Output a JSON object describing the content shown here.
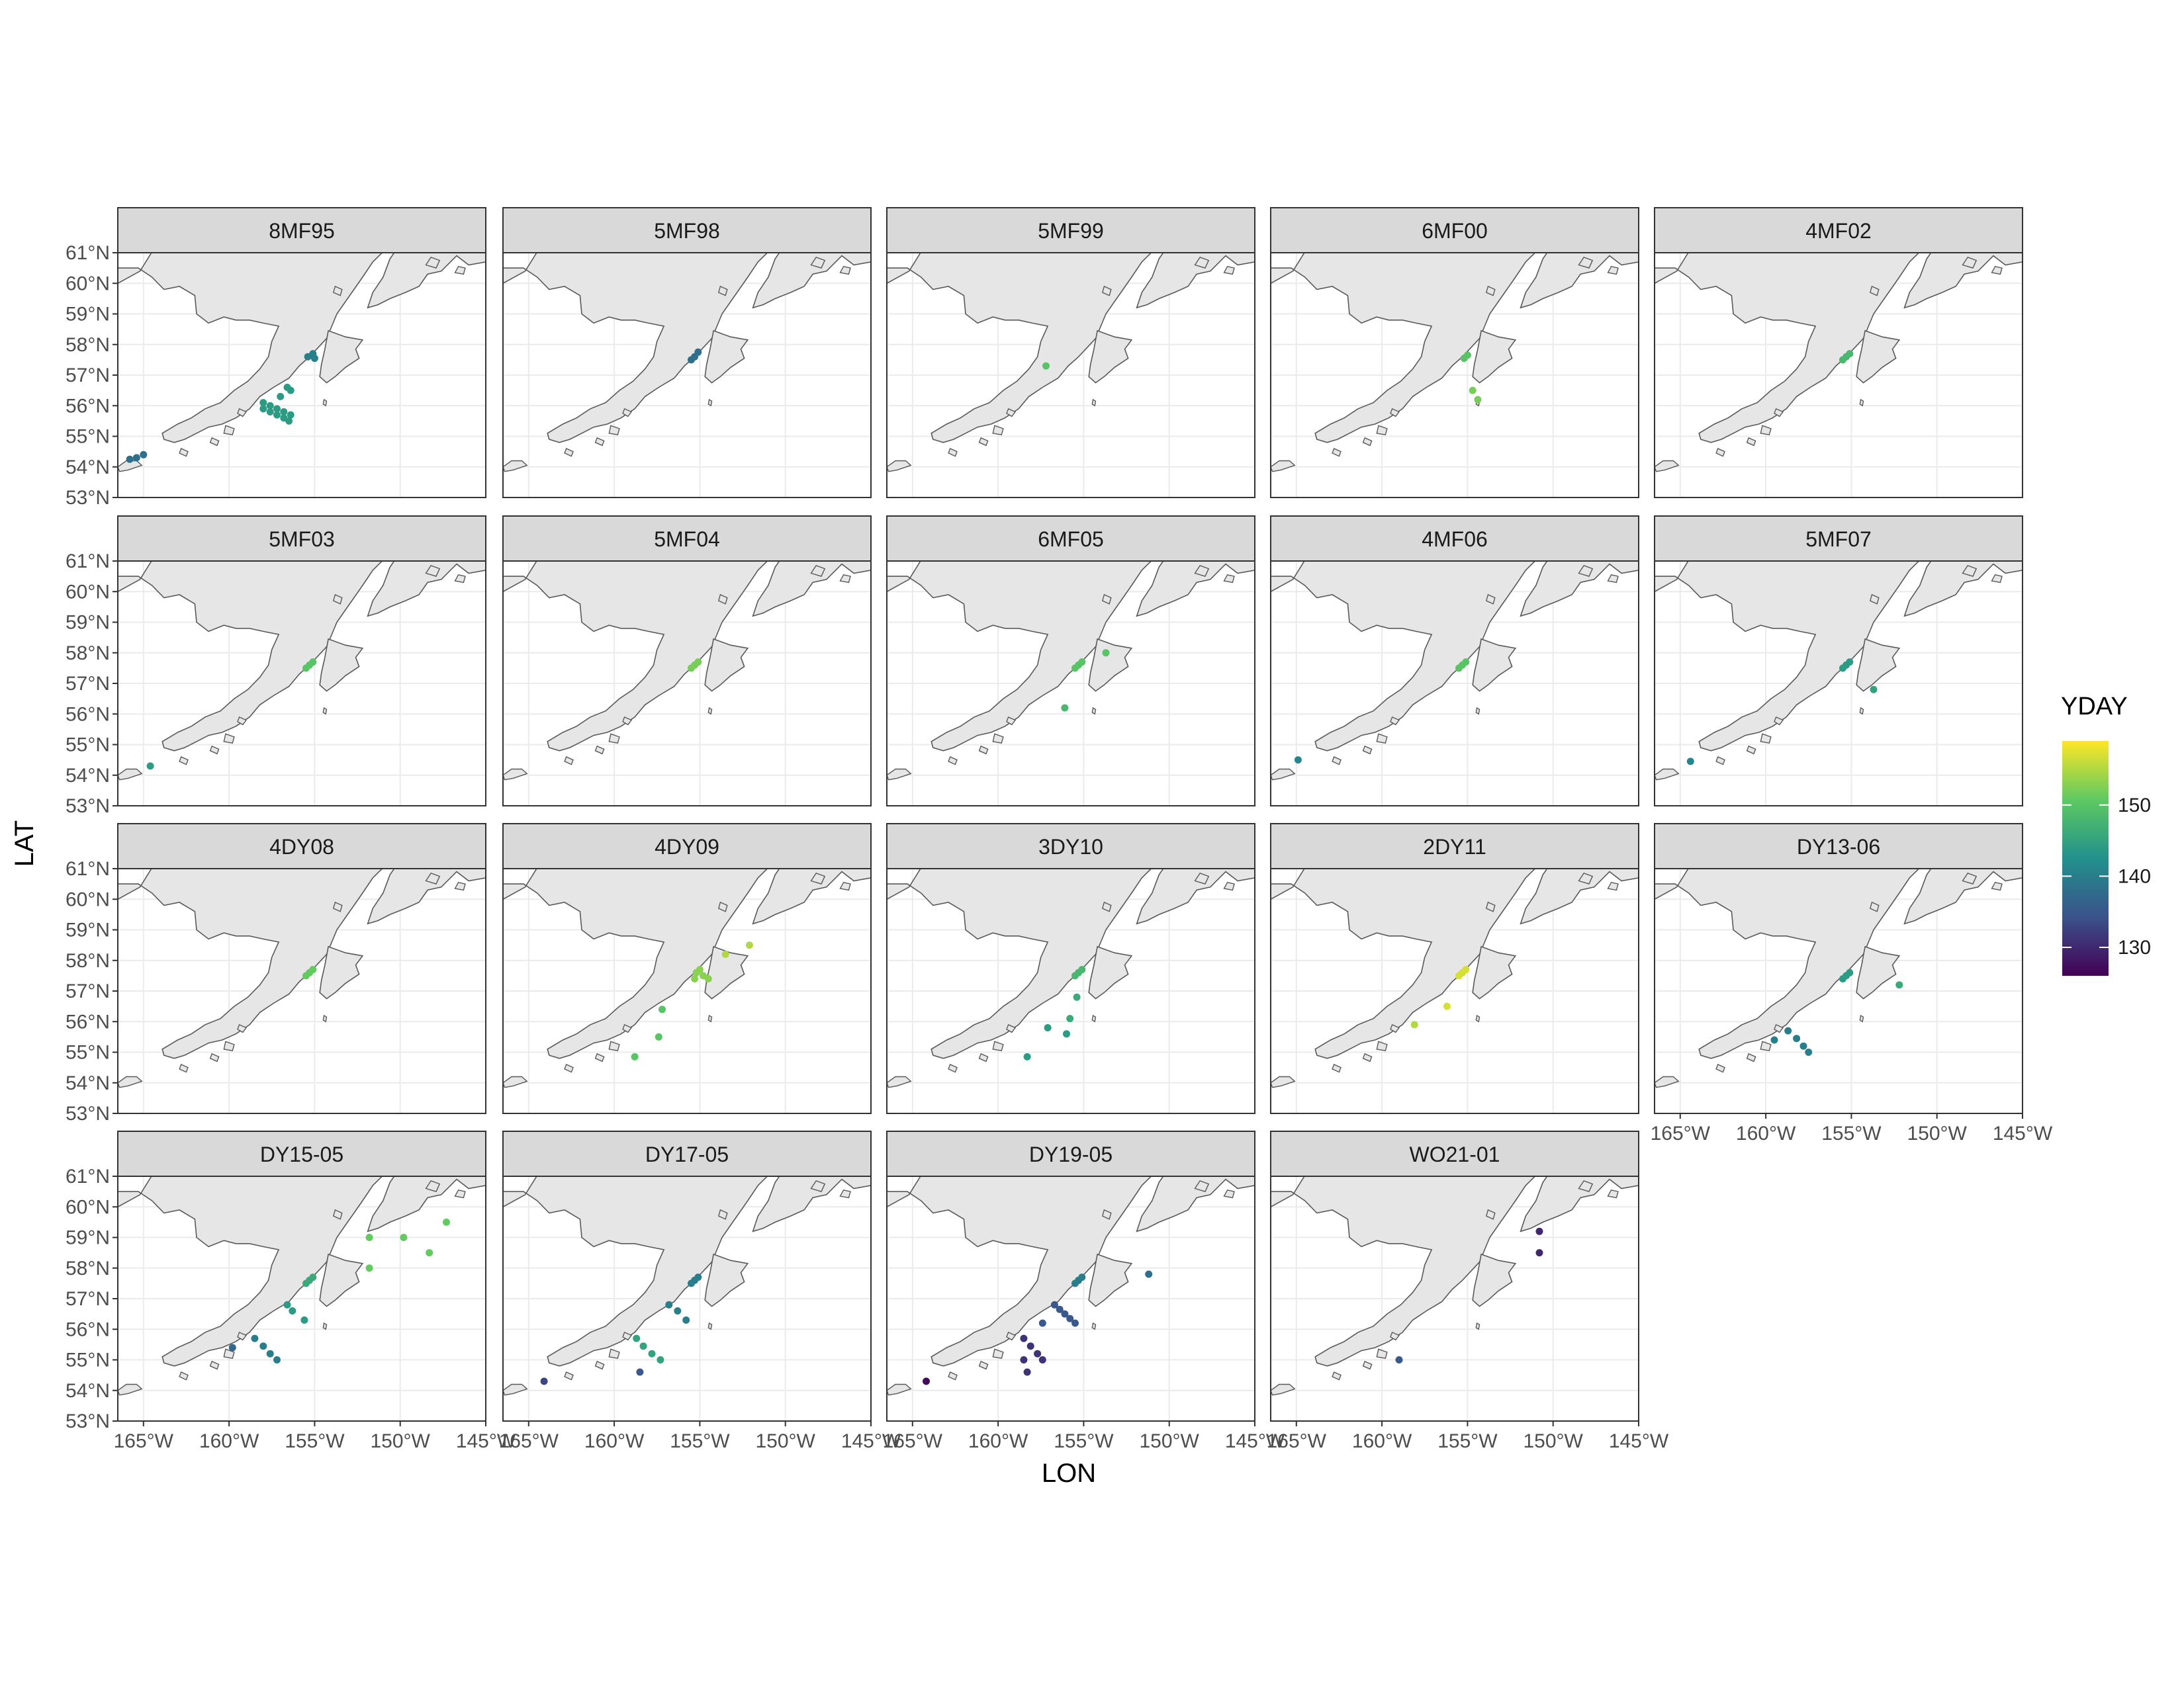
{
  "chart_data": {
    "type": "scatter",
    "title": "",
    "xlabel": "LON",
    "ylabel": "LAT",
    "xlim": [
      -166.5,
      -145
    ],
    "ylim": [
      53,
      61
    ],
    "x_ticks": [
      -165,
      -160,
      -155,
      -150,
      -145
    ],
    "x_tick_labels": [
      "165°W",
      "160°W",
      "155°W",
      "150°W",
      "145°W"
    ],
    "y_ticks": [
      53,
      54,
      55,
      56,
      57,
      58,
      59,
      60,
      61
    ],
    "y_tick_labels": [
      "53°N",
      "54°N",
      "55°N",
      "56°N",
      "57°N",
      "58°N",
      "59°N",
      "60°N",
      "61°N"
    ],
    "grid": true,
    "facet_layout": "4 rows x 5 columns",
    "color_variable": "YDAY",
    "colorbar": {
      "title": "YDAY",
      "range": [
        126,
        159
      ],
      "ticks": [
        130,
        140,
        150
      ],
      "tick_labels": [
        "130",
        "140",
        "150"
      ],
      "colormap": [
        "#440154",
        "#3b528b",
        "#21918c",
        "#5ec962",
        "#fde725"
      ]
    },
    "land_fill": "#e6e6e6",
    "land_outline": "#595959",
    "strip_fill": "#d9d9d9",
    "panels": [
      {
        "label": "8MF95",
        "points": [
          [
            -155.1,
            57.7,
            140
          ],
          [
            -155.4,
            57.6,
            140
          ],
          [
            -155.0,
            57.55,
            140
          ],
          [
            -165.0,
            54.4,
            138
          ],
          [
            -165.4,
            54.3,
            138
          ],
          [
            -165.8,
            54.25,
            138
          ],
          [
            -158.0,
            56.1,
            144
          ],
          [
            -157.6,
            56.0,
            144
          ],
          [
            -157.2,
            55.9,
            144
          ],
          [
            -156.8,
            55.8,
            144
          ],
          [
            -156.4,
            55.7,
            144
          ],
          [
            -158.0,
            55.9,
            144
          ],
          [
            -157.6,
            55.8,
            144
          ],
          [
            -157.2,
            55.7,
            144
          ],
          [
            -156.8,
            55.6,
            144
          ],
          [
            -156.6,
            56.6,
            144
          ],
          [
            -156.4,
            56.5,
            144
          ],
          [
            -156.5,
            55.5,
            144
          ],
          [
            -157.0,
            56.3,
            144
          ]
        ]
      },
      {
        "label": "5MF98",
        "points": [
          [
            -155.1,
            57.75,
            138
          ],
          [
            -155.3,
            57.6,
            138
          ],
          [
            -155.5,
            57.5,
            138
          ]
        ]
      },
      {
        "label": "5MF99",
        "points": [
          [
            -157.2,
            57.3,
            150
          ]
        ]
      },
      {
        "label": "6MF00",
        "points": [
          [
            -155.0,
            57.65,
            150
          ],
          [
            -155.2,
            57.55,
            150
          ],
          [
            -154.7,
            56.5,
            152
          ],
          [
            -154.4,
            56.2,
            152
          ]
        ]
      },
      {
        "label": "4MF02",
        "points": [
          [
            -155.1,
            57.7,
            148
          ],
          [
            -155.3,
            57.6,
            148
          ],
          [
            -155.5,
            57.5,
            148
          ]
        ]
      },
      {
        "label": "5MF03",
        "points": [
          [
            -155.1,
            57.7,
            150
          ],
          [
            -155.3,
            57.6,
            150
          ],
          [
            -155.5,
            57.5,
            150
          ],
          [
            -164.6,
            54.3,
            144
          ]
        ]
      },
      {
        "label": "5MF04",
        "points": [
          [
            -155.1,
            57.7,
            152
          ],
          [
            -155.3,
            57.6,
            152
          ],
          [
            -155.5,
            57.5,
            152
          ]
        ]
      },
      {
        "label": "6MF05",
        "points": [
          [
            -155.1,
            57.7,
            150
          ],
          [
            -155.3,
            57.6,
            150
          ],
          [
            -155.5,
            57.5,
            150
          ],
          [
            -156.1,
            56.2,
            148
          ],
          [
            -153.7,
            58.0,
            150
          ]
        ]
      },
      {
        "label": "4MF06",
        "points": [
          [
            -155.1,
            57.7,
            150
          ],
          [
            -155.3,
            57.6,
            150
          ],
          [
            -155.5,
            57.5,
            150
          ],
          [
            -164.9,
            54.5,
            141
          ]
        ]
      },
      {
        "label": "5MF07",
        "points": [
          [
            -155.1,
            57.7,
            144
          ],
          [
            -155.3,
            57.6,
            144
          ],
          [
            -155.5,
            57.5,
            144
          ],
          [
            -153.7,
            56.8,
            145
          ],
          [
            -164.4,
            54.45,
            141
          ]
        ]
      },
      {
        "label": "4DY08",
        "points": [
          [
            -155.1,
            57.7,
            151
          ],
          [
            -155.3,
            57.6,
            151
          ],
          [
            -155.5,
            57.5,
            151
          ]
        ]
      },
      {
        "label": "4DY09",
        "points": [
          [
            -155.0,
            57.7,
            153
          ],
          [
            -155.2,
            57.6,
            153
          ],
          [
            -154.8,
            57.5,
            153
          ],
          [
            -154.5,
            57.4,
            153
          ],
          [
            -155.3,
            57.4,
            153
          ],
          [
            -153.5,
            58.2,
            155
          ],
          [
            -152.1,
            58.5,
            155
          ],
          [
            -157.2,
            56.4,
            150
          ],
          [
            -157.4,
            55.5,
            150
          ],
          [
            -158.8,
            54.85,
            150
          ]
        ]
      },
      {
        "label": "3DY10",
        "points": [
          [
            -155.1,
            57.7,
            148
          ],
          [
            -155.3,
            57.6,
            148
          ],
          [
            -155.5,
            57.5,
            148
          ],
          [
            -155.4,
            56.8,
            146
          ],
          [
            -155.8,
            56.1,
            146
          ],
          [
            -157.1,
            55.8,
            144
          ],
          [
            -156.0,
            55.6,
            144
          ],
          [
            -158.3,
            54.85,
            144
          ]
        ]
      },
      {
        "label": "2DY11",
        "points": [
          [
            -155.1,
            57.7,
            157
          ],
          [
            -155.3,
            57.6,
            157
          ],
          [
            -155.5,
            57.5,
            157
          ],
          [
            -156.2,
            56.5,
            157
          ],
          [
            -158.1,
            55.9,
            155
          ]
        ]
      },
      {
        "label": "DY13-06",
        "points": [
          [
            -155.1,
            57.6,
            144
          ],
          [
            -155.3,
            57.5,
            144
          ],
          [
            -155.5,
            57.4,
            144
          ],
          [
            -152.2,
            57.2,
            146
          ],
          [
            -158.7,
            55.7,
            140
          ],
          [
            -158.2,
            55.45,
            140
          ],
          [
            -157.8,
            55.2,
            140
          ],
          [
            -157.5,
            55.0,
            140
          ],
          [
            -159.5,
            55.4,
            140
          ]
        ]
      },
      {
        "label": "DY15-05",
        "points": [
          [
            -155.1,
            57.7,
            146
          ],
          [
            -155.3,
            57.6,
            146
          ],
          [
            -155.5,
            57.5,
            146
          ],
          [
            -151.8,
            59.0,
            151
          ],
          [
            -149.8,
            59.0,
            151
          ],
          [
            -148.3,
            58.5,
            151
          ],
          [
            -147.3,
            59.5,
            151
          ],
          [
            -151.8,
            58.0,
            151
          ],
          [
            -156.6,
            56.8,
            144
          ],
          [
            -156.3,
            56.6,
            144
          ],
          [
            -155.6,
            56.3,
            144
          ],
          [
            -158.5,
            55.7,
            140
          ],
          [
            -158.0,
            55.45,
            140
          ],
          [
            -157.6,
            55.2,
            140
          ],
          [
            -157.2,
            55.0,
            140
          ],
          [
            -159.8,
            55.4,
            137
          ]
        ]
      },
      {
        "label": "DY17-05",
        "points": [
          [
            -155.1,
            57.7,
            140
          ],
          [
            -155.3,
            57.6,
            140
          ],
          [
            -155.5,
            57.5,
            140
          ],
          [
            -156.8,
            56.8,
            140
          ],
          [
            -156.3,
            56.6,
            140
          ],
          [
            -155.8,
            56.3,
            140
          ],
          [
            -158.7,
            55.7,
            145
          ],
          [
            -158.3,
            55.45,
            145
          ],
          [
            -157.8,
            55.2,
            145
          ],
          [
            -157.3,
            55.0,
            145
          ],
          [
            -158.5,
            54.6,
            135
          ],
          [
            -164.1,
            54.3,
            133
          ]
        ]
      },
      {
        "label": "DY19-05",
        "points": [
          [
            -155.1,
            57.7,
            140
          ],
          [
            -155.3,
            57.6,
            140
          ],
          [
            -155.5,
            57.5,
            140
          ],
          [
            -151.2,
            57.8,
            138
          ],
          [
            -156.7,
            56.8,
            135
          ],
          [
            -156.4,
            56.65,
            135
          ],
          [
            -156.1,
            56.5,
            135
          ],
          [
            -155.8,
            56.35,
            135
          ],
          [
            -155.5,
            56.2,
            135
          ],
          [
            -157.4,
            56.2,
            135
          ],
          [
            -158.5,
            55.7,
            131
          ],
          [
            -158.1,
            55.45,
            131
          ],
          [
            -157.7,
            55.2,
            131
          ],
          [
            -157.4,
            55.0,
            131
          ],
          [
            -158.5,
            55.0,
            131
          ],
          [
            -158.3,
            54.6,
            131
          ],
          [
            -164.2,
            54.3,
            127
          ]
        ]
      },
      {
        "label": "WO21-01",
        "points": [
          [
            -150.8,
            59.2,
            130
          ],
          [
            -150.8,
            58.5,
            130
          ],
          [
            -159.0,
            55.0,
            135
          ]
        ]
      }
    ]
  }
}
